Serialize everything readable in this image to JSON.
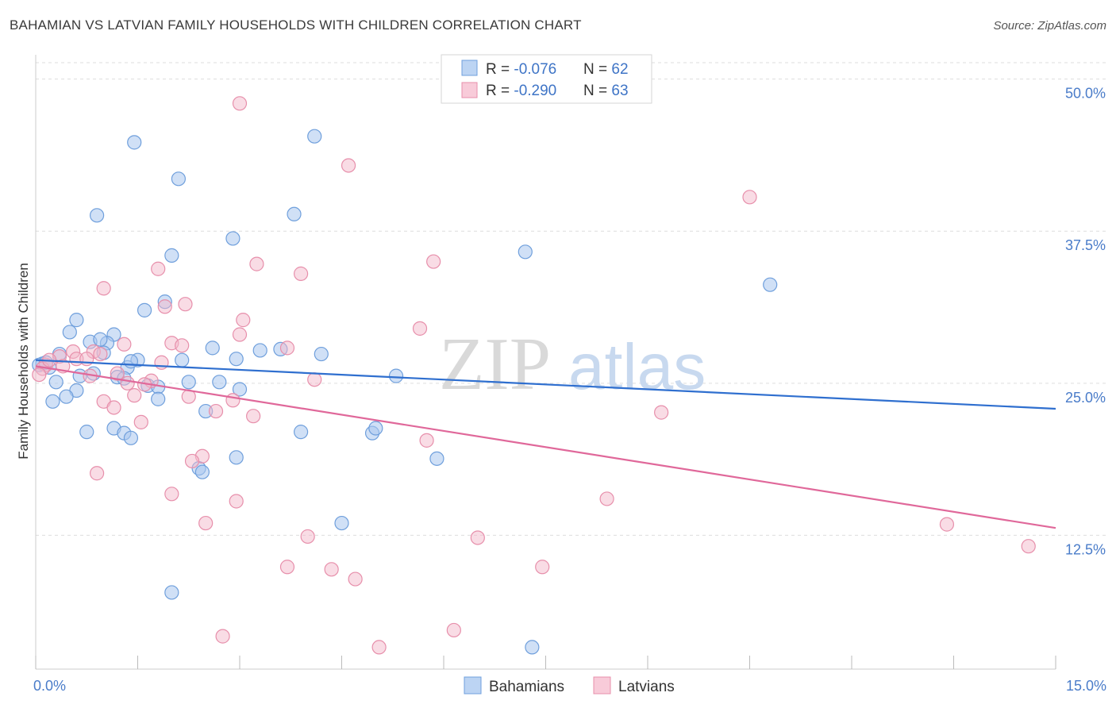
{
  "header": {
    "title": "BAHAMIAN VS LATVIAN FAMILY HOUSEHOLDS WITH CHILDREN CORRELATION CHART",
    "source": "Source: ZipAtlas.com"
  },
  "watermark": {
    "zip": "ZIP",
    "atlas": "atlas"
  },
  "colors": {
    "blue_fill": "#a9c6ee",
    "blue_stroke": "#6f9fdc",
    "blue_line": "#2f6fcf",
    "pink_fill": "#f4b9cb",
    "pink_stroke": "#e78fab",
    "pink_line": "#e0689a",
    "tick": "#4a7cc9",
    "grid": "#dddddd"
  },
  "legend": {
    "rows": [
      {
        "r_label": "R = ",
        "r_value": "-0.076",
        "n_label": "N = ",
        "n_value": "62"
      },
      {
        "r_label": "R = ",
        "r_value": "-0.290",
        "n_label": "N = ",
        "n_value": "63"
      }
    ]
  },
  "chart_data": {
    "type": "scatter",
    "title": "BAHAMIAN VS LATVIAN FAMILY HOUSEHOLDS WITH CHILDREN CORRELATION CHART",
    "xlabel": "",
    "ylabel": "Family Households with Children",
    "xlim": [
      0,
      15
    ],
    "ylim": [
      1.5,
      52
    ],
    "x_tick_labels": [
      {
        "value": 0,
        "label": "0.0%"
      },
      {
        "value": 15,
        "label": "15.0%"
      }
    ],
    "y_ticks": [
      {
        "value": 12.5,
        "label": "12.5%"
      },
      {
        "value": 25.0,
        "label": "25.0%"
      },
      {
        "value": 37.5,
        "label": "37.5%"
      },
      {
        "value": 50.0,
        "label": "50.0%"
      }
    ],
    "grid": true,
    "legend_position": "top-center",
    "series": [
      {
        "name": "Bahamians",
        "color": "#a9c6ee",
        "r": -0.076,
        "n": 62,
        "trend": {
          "x": [
            0,
            15
          ],
          "y": [
            26.9,
            22.9
          ]
        },
        "points": [
          [
            1.45,
            44.8
          ],
          [
            4.1,
            45.3
          ],
          [
            2.1,
            41.8
          ],
          [
            0.9,
            38.8
          ],
          [
            3.8,
            38.9
          ],
          [
            2.9,
            36.9
          ],
          [
            2.0,
            35.5
          ],
          [
            7.2,
            35.8
          ],
          [
            10.8,
            33.1
          ],
          [
            1.9,
            31.7
          ],
          [
            1.6,
            31.0
          ],
          [
            0.6,
            30.2
          ],
          [
            0.5,
            29.2
          ],
          [
            1.15,
            29.0
          ],
          [
            0.8,
            28.4
          ],
          [
            1.05,
            28.3
          ],
          [
            0.95,
            28.6
          ],
          [
            2.6,
            27.9
          ],
          [
            3.3,
            27.7
          ],
          [
            3.6,
            27.8
          ],
          [
            4.2,
            27.4
          ],
          [
            0.35,
            27.4
          ],
          [
            1.0,
            27.5
          ],
          [
            2.15,
            26.9
          ],
          [
            2.95,
            27.0
          ],
          [
            1.5,
            26.9
          ],
          [
            0.1,
            26.6
          ],
          [
            0.2,
            26.3
          ],
          [
            1.35,
            26.3
          ],
          [
            0.85,
            25.8
          ],
          [
            0.65,
            25.6
          ],
          [
            1.2,
            25.5
          ],
          [
            1.3,
            25.4
          ],
          [
            5.3,
            25.6
          ],
          [
            0.3,
            25.1
          ],
          [
            2.25,
            25.1
          ],
          [
            2.7,
            25.1
          ],
          [
            1.65,
            24.8
          ],
          [
            1.8,
            24.7
          ],
          [
            0.6,
            24.4
          ],
          [
            0.45,
            23.9
          ],
          [
            1.8,
            23.7
          ],
          [
            0.25,
            23.5
          ],
          [
            2.5,
            22.7
          ],
          [
            0.75,
            21.0
          ],
          [
            1.15,
            21.3
          ],
          [
            1.3,
            20.9
          ],
          [
            1.4,
            20.5
          ],
          [
            3.9,
            21.0
          ],
          [
            4.95,
            20.9
          ],
          [
            5.0,
            21.3
          ],
          [
            2.95,
            18.9
          ],
          [
            5.9,
            18.8
          ],
          [
            2.4,
            18.0
          ],
          [
            2.45,
            17.7
          ],
          [
            4.5,
            13.5
          ],
          [
            2.0,
            7.8
          ],
          [
            7.3,
            3.3
          ],
          [
            0.05,
            26.5
          ],
          [
            0.15,
            26.7
          ],
          [
            1.4,
            26.8
          ],
          [
            3.0,
            24.5
          ]
        ]
      },
      {
        "name": "Latvians",
        "color": "#f4b9cb",
        "r": -0.29,
        "n": 63,
        "trend": {
          "x": [
            0,
            15
          ],
          "y": [
            26.4,
            13.1
          ]
        },
        "points": [
          [
            3.0,
            48.0
          ],
          [
            4.6,
            42.9
          ],
          [
            10.5,
            40.3
          ],
          [
            5.85,
            35.0
          ],
          [
            3.25,
            34.8
          ],
          [
            1.8,
            34.4
          ],
          [
            3.9,
            34.0
          ],
          [
            1.0,
            32.8
          ],
          [
            2.2,
            31.5
          ],
          [
            1.9,
            31.3
          ],
          [
            3.05,
            30.2
          ],
          [
            5.65,
            29.5
          ],
          [
            3.0,
            29.0
          ],
          [
            2.0,
            28.3
          ],
          [
            2.15,
            28.1
          ],
          [
            1.3,
            28.2
          ],
          [
            3.7,
            27.9
          ],
          [
            0.55,
            27.6
          ],
          [
            0.85,
            27.6
          ],
          [
            0.35,
            27.2
          ],
          [
            0.6,
            27.0
          ],
          [
            0.75,
            27.0
          ],
          [
            0.95,
            27.4
          ],
          [
            1.85,
            26.7
          ],
          [
            0.15,
            26.5
          ],
          [
            0.4,
            26.4
          ],
          [
            0.1,
            26.2
          ],
          [
            1.2,
            25.8
          ],
          [
            0.05,
            25.7
          ],
          [
            0.8,
            25.6
          ],
          [
            4.1,
            25.3
          ],
          [
            1.35,
            25.0
          ],
          [
            1.7,
            25.2
          ],
          [
            1.45,
            24.0
          ],
          [
            2.25,
            23.9
          ],
          [
            1.0,
            23.5
          ],
          [
            1.15,
            23.0
          ],
          [
            2.65,
            22.7
          ],
          [
            3.2,
            22.3
          ],
          [
            9.2,
            22.6
          ],
          [
            1.55,
            21.8
          ],
          [
            5.75,
            20.3
          ],
          [
            2.45,
            19.0
          ],
          [
            2.3,
            18.6
          ],
          [
            0.9,
            17.6
          ],
          [
            2.0,
            15.9
          ],
          [
            2.95,
            15.3
          ],
          [
            8.4,
            15.5
          ],
          [
            2.5,
            13.5
          ],
          [
            4.0,
            12.4
          ],
          [
            6.5,
            12.3
          ],
          [
            13.4,
            13.4
          ],
          [
            14.6,
            11.6
          ],
          [
            3.7,
            9.9
          ],
          [
            4.35,
            9.7
          ],
          [
            4.7,
            8.9
          ],
          [
            7.45,
            9.9
          ],
          [
            2.75,
            4.2
          ],
          [
            5.05,
            3.3
          ],
          [
            6.15,
            4.7
          ],
          [
            1.6,
            24.9
          ],
          [
            2.9,
            23.6
          ],
          [
            0.2,
            26.9
          ]
        ]
      }
    ]
  }
}
